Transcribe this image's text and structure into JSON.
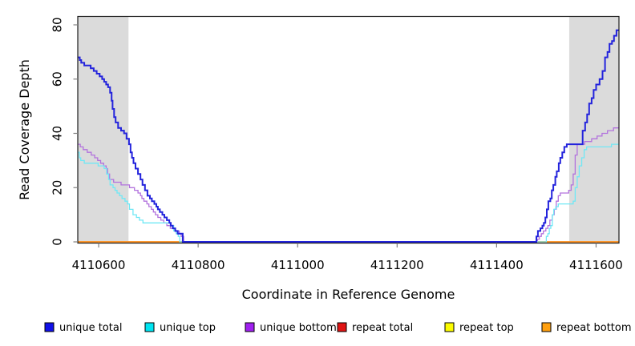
{
  "chart_data": {
    "type": "line",
    "step": true,
    "title": "",
    "xlabel": "Coordinate in Reference Genome",
    "ylabel": "Read Coverage Depth",
    "xlim": [
      4110558,
      4111646
    ],
    "ylim": [
      0,
      83
    ],
    "xticks": [
      4110600,
      4110800,
      4111000,
      4111200,
      4111400,
      4111600
    ],
    "yticks": [
      0,
      20,
      40,
      60,
      80
    ],
    "grid": "off",
    "legend_position": "bottom",
    "shade_color": "#DBDBDB",
    "axis_color": "#1a1a1a",
    "tick_color": "#808080",
    "shaded_regions": [
      {
        "x0": 4110558,
        "x1": 4110660
      },
      {
        "x0": 4111546,
        "x1": 4111646
      }
    ],
    "series": [
      {
        "name": "repeat total",
        "color": "#E01414",
        "width": 1.2,
        "points": [
          [
            4110558,
            0
          ],
          [
            4111646,
            0
          ]
        ]
      },
      {
        "name": "repeat top",
        "color": "#FCFC00",
        "width": 1.2,
        "points": [
          [
            4110558,
            0
          ],
          [
            4111646,
            0
          ]
        ]
      },
      {
        "name": "repeat bottom",
        "color": "#FF9122",
        "width": 1.8,
        "points": [
          [
            4110558,
            0
          ],
          [
            4111646,
            0
          ]
        ]
      },
      {
        "name": "unique bottom",
        "color": "#B272DD",
        "width": 1.3,
        "points": [
          [
            4110558,
            36
          ],
          [
            4110563,
            35
          ],
          [
            4110569,
            34
          ],
          [
            4110577,
            33
          ],
          [
            4110585,
            32
          ],
          [
            4110592,
            31
          ],
          [
            4110598,
            30
          ],
          [
            4110604,
            29
          ],
          [
            4110610,
            28
          ],
          [
            4110615,
            27
          ],
          [
            4110618,
            25
          ],
          [
            4110622,
            23
          ],
          [
            4110630,
            22
          ],
          [
            4110645,
            21
          ],
          [
            4110662,
            20
          ],
          [
            4110672,
            19
          ],
          [
            4110679,
            18
          ],
          [
            4110684,
            17
          ],
          [
            4110687,
            16
          ],
          [
            4110691,
            15
          ],
          [
            4110697,
            14
          ],
          [
            4110701,
            13
          ],
          [
            4110706,
            12
          ],
          [
            4110710,
            11
          ],
          [
            4110714,
            10
          ],
          [
            4110719,
            9
          ],
          [
            4110725,
            8
          ],
          [
            4110731,
            7
          ],
          [
            4110737,
            6
          ],
          [
            4110744,
            5
          ],
          [
            4110753,
            4
          ],
          [
            4110762,
            3
          ],
          [
            4110766,
            2
          ],
          [
            4110771,
            0
          ],
          [
            4111479,
            0
          ],
          [
            4111482,
            1
          ],
          [
            4111486,
            2
          ],
          [
            4111490,
            3
          ],
          [
            4111494,
            4
          ],
          [
            4111499,
            5
          ],
          [
            4111503,
            6
          ],
          [
            4111507,
            8
          ],
          [
            4111512,
            10
          ],
          [
            4111516,
            12
          ],
          [
            4111520,
            15
          ],
          [
            4111524,
            17
          ],
          [
            4111528,
            18
          ],
          [
            4111545,
            19
          ],
          [
            4111550,
            21
          ],
          [
            4111554,
            25
          ],
          [
            4111558,
            32
          ],
          [
            4111562,
            36
          ],
          [
            4111577,
            37
          ],
          [
            4111591,
            38
          ],
          [
            4111602,
            39
          ],
          [
            4111612,
            40
          ],
          [
            4111623,
            41
          ],
          [
            4111635,
            42
          ],
          [
            4111646,
            42
          ]
        ]
      },
      {
        "name": "unique top",
        "color": "#70E8F5",
        "width": 1.3,
        "points": [
          [
            4110558,
            33
          ],
          [
            4110561,
            31
          ],
          [
            4110564,
            30
          ],
          [
            4110571,
            29
          ],
          [
            4110599,
            28
          ],
          [
            4110611,
            27
          ],
          [
            4110616,
            25
          ],
          [
            4110620,
            23
          ],
          [
            4110623,
            21
          ],
          [
            4110629,
            20
          ],
          [
            4110633,
            19
          ],
          [
            4110637,
            18
          ],
          [
            4110642,
            17
          ],
          [
            4110647,
            16
          ],
          [
            4110653,
            15
          ],
          [
            4110658,
            14
          ],
          [
            4110662,
            12
          ],
          [
            4110669,
            10
          ],
          [
            4110676,
            9
          ],
          [
            4110682,
            8
          ],
          [
            4110689,
            7
          ],
          [
            4110744,
            6
          ],
          [
            4110751,
            4
          ],
          [
            4110756,
            3
          ],
          [
            4110760,
            2
          ],
          [
            4110763,
            0
          ],
          [
            4111498,
            0
          ],
          [
            4111500,
            2
          ],
          [
            4111503,
            3
          ],
          [
            4111506,
            5
          ],
          [
            4111509,
            6
          ],
          [
            4111512,
            10
          ],
          [
            4111515,
            12
          ],
          [
            4111519,
            13
          ],
          [
            4111524,
            14
          ],
          [
            4111554,
            15
          ],
          [
            4111558,
            20
          ],
          [
            4111562,
            24
          ],
          [
            4111566,
            28
          ],
          [
            4111571,
            31
          ],
          [
            4111576,
            34
          ],
          [
            4111581,
            35
          ],
          [
            4111631,
            36
          ],
          [
            4111646,
            36
          ]
        ]
      },
      {
        "name": "unique total",
        "color": "#2323DC",
        "width": 2,
        "points": [
          [
            4110558,
            68
          ],
          [
            4110562,
            67
          ],
          [
            4110565,
            66
          ],
          [
            4110571,
            65
          ],
          [
            4110584,
            64
          ],
          [
            4110590,
            63
          ],
          [
            4110596,
            62
          ],
          [
            4110602,
            61
          ],
          [
            4110607,
            60
          ],
          [
            4110611,
            59
          ],
          [
            4110615,
            58
          ],
          [
            4110619,
            57
          ],
          [
            4110623,
            55
          ],
          [
            4110626,
            52
          ],
          [
            4110628,
            49
          ],
          [
            4110631,
            46
          ],
          [
            4110634,
            44
          ],
          [
            4110639,
            42
          ],
          [
            4110645,
            41
          ],
          [
            4110651,
            40
          ],
          [
            4110656,
            38
          ],
          [
            4110661,
            36
          ],
          [
            4110664,
            33
          ],
          [
            4110667,
            31
          ],
          [
            4110670,
            29
          ],
          [
            4110674,
            27
          ],
          [
            4110679,
            25
          ],
          [
            4110684,
            23
          ],
          [
            4110688,
            21
          ],
          [
            4110693,
            19
          ],
          [
            4110698,
            17
          ],
          [
            4110703,
            16
          ],
          [
            4110707,
            15
          ],
          [
            4110712,
            14
          ],
          [
            4110716,
            13
          ],
          [
            4110719,
            12
          ],
          [
            4110723,
            11
          ],
          [
            4110728,
            10
          ],
          [
            4110732,
            9
          ],
          [
            4110737,
            8
          ],
          [
            4110742,
            7
          ],
          [
            4110745,
            6
          ],
          [
            4110749,
            5
          ],
          [
            4110754,
            4
          ],
          [
            4110759,
            3
          ],
          [
            4110769,
            0
          ],
          [
            4111477,
            0
          ],
          [
            4111480,
            2
          ],
          [
            4111483,
            4
          ],
          [
            4111488,
            5
          ],
          [
            4111492,
            6
          ],
          [
            4111495,
            7
          ],
          [
            4111498,
            9
          ],
          [
            4111501,
            12
          ],
          [
            4111504,
            15
          ],
          [
            4111508,
            16
          ],
          [
            4111511,
            19
          ],
          [
            4111514,
            21
          ],
          [
            4111518,
            24
          ],
          [
            4111521,
            26
          ],
          [
            4111525,
            29
          ],
          [
            4111528,
            31
          ],
          [
            4111532,
            33
          ],
          [
            4111536,
            35
          ],
          [
            4111541,
            36
          ],
          [
            4111573,
            41
          ],
          [
            4111578,
            44
          ],
          [
            4111582,
            47
          ],
          [
            4111586,
            51
          ],
          [
            4111591,
            53
          ],
          [
            4111595,
            56
          ],
          [
            4111600,
            58
          ],
          [
            4111607,
            60
          ],
          [
            4111613,
            63
          ],
          [
            4111618,
            68
          ],
          [
            4111623,
            70
          ],
          [
            4111627,
            73
          ],
          [
            4111632,
            74
          ],
          [
            4111636,
            76
          ],
          [
            4111641,
            78
          ],
          [
            4111646,
            78
          ]
        ]
      }
    ],
    "legend": [
      {
        "label": "unique total",
        "fill": "#1010E8"
      },
      {
        "label": "unique top",
        "fill": "#00E5F2"
      },
      {
        "label": "unique bottom",
        "fill": "#A020F0"
      },
      {
        "label": "repeat total",
        "fill": "#E01414"
      },
      {
        "label": "repeat top",
        "fill": "#FCFC00"
      },
      {
        "label": "repeat bottom",
        "fill": "#FFA010"
      }
    ]
  }
}
